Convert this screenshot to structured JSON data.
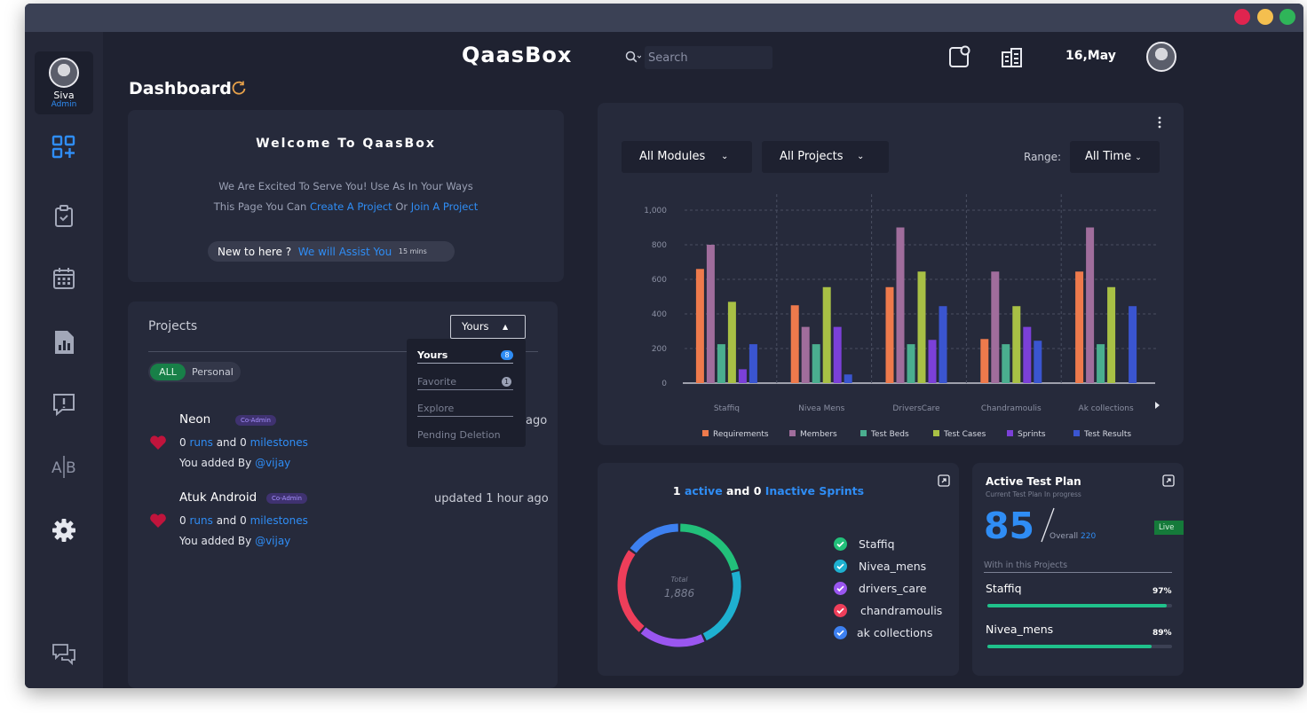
{
  "app": {
    "title": "QaasBox",
    "date": "16,May"
  },
  "user": {
    "name": "Siva",
    "role": "Admin"
  },
  "search": {
    "placeholder": "Search"
  },
  "page": {
    "title": "Dashboard"
  },
  "welcome": {
    "title": "Welcome To QaasBox",
    "line1": "We Are Excited To Serve You! Use As In Your Ways",
    "line2_prefix": "This Page You  Can",
    "create_link": "Create A Project",
    "or": "Or",
    "join_link": "Join A Project",
    "assist_prefix": "New to here ?",
    "assist_link": "We will Assist You",
    "assist_time": "15 mins"
  },
  "projects": {
    "title": "Projects",
    "dropdown_value": "Yours",
    "filter_all": "ALL",
    "filter_personal": "Personal",
    "menu": [
      {
        "label": "Yours",
        "count": "8"
      },
      {
        "label": "Favorite",
        "count": "1"
      },
      {
        "label": "Explore",
        "count": ""
      },
      {
        "label": "Pending Deletion",
        "count": ""
      }
    ],
    "items": [
      {
        "name": "Neon",
        "badge": "Co-Admin",
        "updated": "ago",
        "runs": "0",
        "runs_label": "runs",
        "and": "and",
        "milestones": "0",
        "milestones_label": "milestones",
        "added_by": "You added By",
        "user": "@vijay"
      },
      {
        "name": "Atuk Android",
        "badge": "Co-Admin",
        "updated": "updated 1 hour ago",
        "runs": "0",
        "runs_label": "runs",
        "and": "and",
        "milestones": "0",
        "milestones_label": "milestones",
        "added_by": "You added By",
        "user": "@vijay"
      }
    ]
  },
  "filters": {
    "modules": "All Modules",
    "projects": "All Projects",
    "range_label": "Range:",
    "range_value": "All Time"
  },
  "chart_data": {
    "type": "bar",
    "categories": [
      "Staffiq",
      "Nivea Mens",
      "DriversCare",
      "Chandramoulis",
      "Ak collections"
    ],
    "ylim": [
      0,
      1000
    ],
    "yticks": [
      "0",
      "200",
      "400",
      "600",
      "800",
      "1,000"
    ],
    "series": [
      {
        "name": "Requirements",
        "color": "#ee7a4c",
        "values": [
          660,
          450,
          555,
          255,
          645
        ]
      },
      {
        "name": "Members",
        "color": "#a06d9c",
        "values": [
          800,
          325,
          900,
          645,
          900
        ]
      },
      {
        "name": "Test Beds",
        "color": "#4aae8f",
        "values": [
          225,
          225,
          225,
          225,
          225
        ]
      },
      {
        "name": "Test Cases",
        "color": "#a8c045",
        "values": [
          470,
          555,
          645,
          445,
          555
        ]
      },
      {
        "name": "Sprints",
        "color": "#7b40d8",
        "values": [
          80,
          325,
          250,
          325,
          0
        ]
      },
      {
        "name": "Test Results",
        "color": "#3a55d0",
        "values": [
          225,
          50,
          445,
          245,
          445
        ]
      }
    ]
  },
  "sprints": {
    "active_count": "1",
    "active_label": "active",
    "and": "and",
    "inactive_count": "0",
    "inactive_label": "Inactive Sprints",
    "total_label": "Total",
    "total_value": "1,886",
    "items": [
      {
        "label": "Staffiq",
        "color": "#22c07a"
      },
      {
        "label": "Nivea_mens",
        "color": "#1eb0d0"
      },
      {
        "label": "drivers_care",
        "color": "#9a56f0"
      },
      {
        "label": "chandramoulis",
        "color": "#ee3e5a"
      },
      {
        "label": "ak collections",
        "color": "#3d80f0"
      }
    ],
    "donut": [
      {
        "value": 21,
        "color": "#22c07a"
      },
      {
        "value": 22,
        "color": "#1eb0d0"
      },
      {
        "value": 18,
        "color": "#9a56f0"
      },
      {
        "value": 24,
        "color": "#ee3e5a"
      },
      {
        "value": 15,
        "color": "#3d80f0"
      }
    ]
  },
  "test_plan": {
    "title": "Active Test Plan",
    "subtitle": "Current Test Plan In progress",
    "value": "85",
    "overall_label": "Overall",
    "overall_value": "220",
    "live": "Live",
    "within": "With in this Projects",
    "projects": [
      {
        "name": "Staffiq",
        "percent": "97%",
        "progress": 0.97
      },
      {
        "name": "Nivea_mens",
        "percent": "89%",
        "progress": 0.89
      }
    ]
  },
  "colors": {
    "accent": "#2f8df5",
    "bg": "#1f2231",
    "panel": "#262a3b",
    "sidebar": "#252838"
  }
}
